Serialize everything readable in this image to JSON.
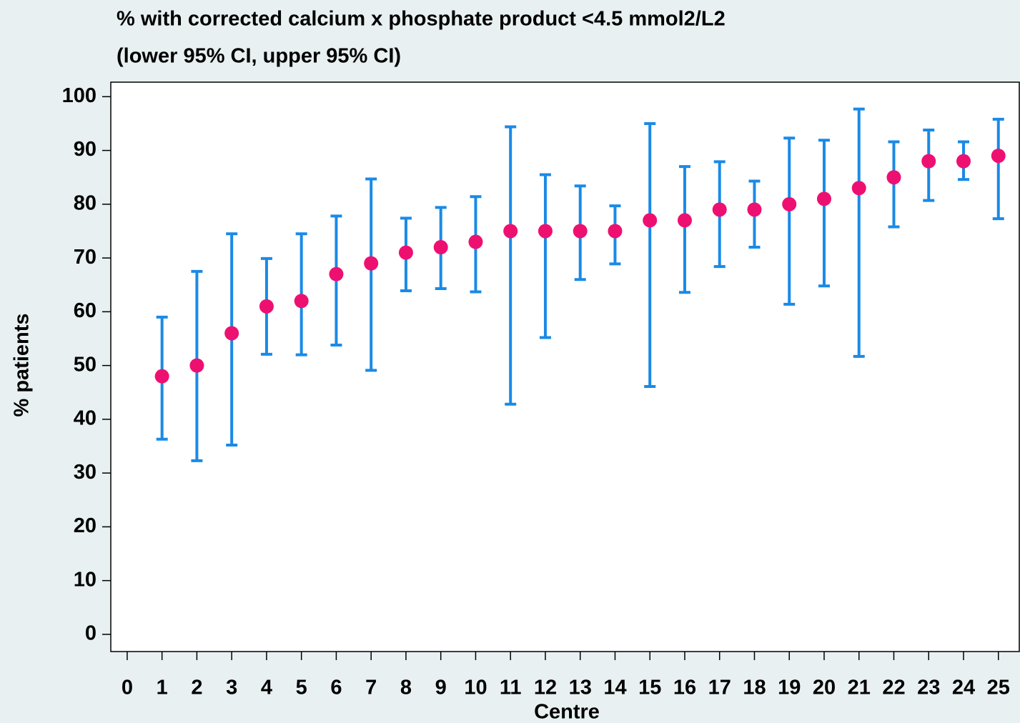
{
  "chart_data": {
    "type": "errorbar",
    "title": "% with corrected calcium x phosphate product <4.5 mmol2/L2",
    "subtitle": "(lower 95% CI, upper 95% CI)",
    "x_label": "Centre",
    "y_label": "% patients",
    "x": [
      1,
      2,
      3,
      4,
      5,
      6,
      7,
      8,
      9,
      10,
      11,
      12,
      13,
      14,
      15,
      16,
      17,
      18,
      19,
      20,
      21,
      22,
      23,
      24,
      25
    ],
    "values": [
      48,
      50,
      56,
      61,
      62,
      67,
      69,
      71,
      72,
      73,
      75,
      75,
      75,
      75,
      77,
      77,
      79,
      79,
      80,
      81,
      83,
      85,
      88,
      88,
      89
    ],
    "lower": [
      36.3,
      32.3,
      35.2,
      52.1,
      52,
      53.8,
      49.1,
      63.9,
      64.3,
      63.7,
      42.8,
      55.2,
      66,
      68.9,
      46.1,
      63.6,
      68.4,
      72,
      61.4,
      64.8,
      51.7,
      75.8,
      80.7,
      84.6,
      77.3
    ],
    "upper": [
      59,
      67.5,
      74.5,
      69.9,
      74.5,
      77.8,
      84.7,
      77.4,
      79.4,
      81.4,
      94.4,
      85.5,
      83.4,
      79.7,
      95,
      87,
      87.9,
      84.3,
      92.3,
      91.9,
      97.7,
      91.6,
      93.8,
      91.6,
      95.8
    ],
    "point_color": "#ee1070",
    "bar_color": "#1a8ae6",
    "xlim": [
      -0.47,
      25.6
    ],
    "ylim": [
      -3.2,
      102.7
    ],
    "xticks": [
      0,
      1,
      2,
      3,
      4,
      5,
      6,
      7,
      8,
      9,
      10,
      11,
      12,
      13,
      14,
      15,
      16,
      17,
      18,
      19,
      20,
      21,
      22,
      23,
      24,
      25
    ],
    "yticks": [
      0,
      10,
      20,
      30,
      40,
      50,
      60,
      70,
      80,
      90,
      100
    ]
  }
}
